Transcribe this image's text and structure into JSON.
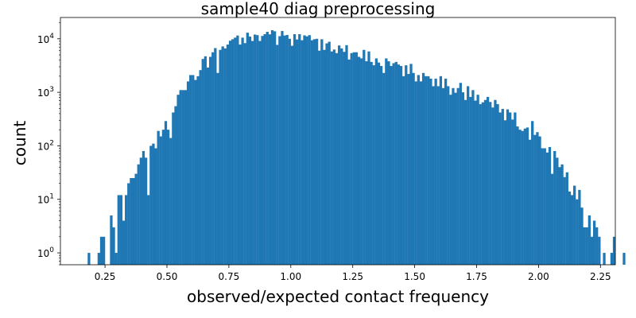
{
  "chart_data": {
    "type": "bar",
    "title": "sample40 diag preprocessing",
    "xlabel": "observed/expected contact frequency",
    "ylabel": "count",
    "xlim": [
      0.07,
      2.31
    ],
    "ylim": [
      0.6,
      25000
    ],
    "yscale": "log",
    "grid": false,
    "bar_color": "#1f77b4",
    "x_ticks": [
      "0.25",
      "0.50",
      "0.75",
      "1.00",
      "1.25",
      "1.50",
      "1.75",
      "2.00",
      "2.25"
    ],
    "x_tick_values": [
      0.25,
      0.5,
      0.75,
      1.0,
      1.25,
      1.5,
      1.75,
      2.0,
      2.25
    ],
    "y_ticks": [
      {
        "value": 1,
        "base": "10",
        "exp": "0"
      },
      {
        "value": 10,
        "base": "10",
        "exp": "1"
      },
      {
        "value": 100,
        "base": "10",
        "exp": "2"
      },
      {
        "value": 1000,
        "base": "10",
        "exp": "3"
      },
      {
        "value": 10000,
        "base": "10",
        "exp": "4"
      }
    ],
    "bin_width": 0.01,
    "bin_start": 0.18,
    "counts": [
      1,
      0,
      0,
      0,
      1,
      2,
      2,
      0,
      0,
      5,
      3,
      1,
      12,
      12,
      4,
      12,
      20,
      25,
      25,
      30,
      45,
      60,
      80,
      60,
      12,
      100,
      110,
      90,
      190,
      150,
      200,
      290,
      200,
      140,
      420,
      550,
      900,
      1100,
      1100,
      1100,
      1600,
      2100,
      2100,
      1700,
      2000,
      2600,
      4200,
      4700,
      2900,
      4600,
      5600,
      6700,
      2300,
      6200,
      7200,
      6600,
      7800,
      9200,
      9800,
      10500,
      11500,
      7800,
      10500,
      8300,
      13000,
      11000,
      9100,
      12000,
      11700,
      9100,
      11300,
      12200,
      13500,
      12100,
      14500,
      13800,
      7700,
      11200,
      14000,
      11500,
      11800,
      10000,
      7400,
      12200,
      9700,
      12200,
      9400,
      11600,
      11100,
      11700,
      9400,
      9800,
      10000,
      6000,
      9800,
      6200,
      8200,
      8800,
      5800,
      6300,
      5400,
      7500,
      6600,
      5700,
      7600,
      4100,
      5400,
      5600,
      5600,
      4600,
      4300,
      6200,
      3800,
      5800,
      3700,
      3200,
      4300,
      3600,
      3100,
      2300,
      4300,
      3800,
      3100,
      3500,
      3700,
      3300,
      3100,
      2000,
      3200,
      2200,
      3400,
      2300,
      1600,
      2100,
      1600,
      2300,
      2000,
      2000,
      1800,
      1300,
      1800,
      1300,
      2000,
      1200,
      1800,
      1300,
      900,
      1200,
      980,
      1200,
      1500,
      1000,
      720,
      1300,
      820,
      1100,
      700,
      900,
      600,
      650,
      720,
      820,
      660,
      520,
      720,
      600,
      420,
      490,
      300,
      480,
      420,
      310,
      420,
      230,
      200,
      190,
      210,
      220,
      130,
      290,
      160,
      180,
      150,
      90,
      90,
      75,
      95,
      30,
      80,
      60,
      40,
      45,
      26,
      32,
      14,
      12,
      18,
      10,
      15,
      7,
      3,
      3,
      5,
      2,
      4,
      3,
      2,
      0,
      1,
      0,
      0,
      1,
      2,
      0,
      0,
      0,
      1
    ]
  }
}
